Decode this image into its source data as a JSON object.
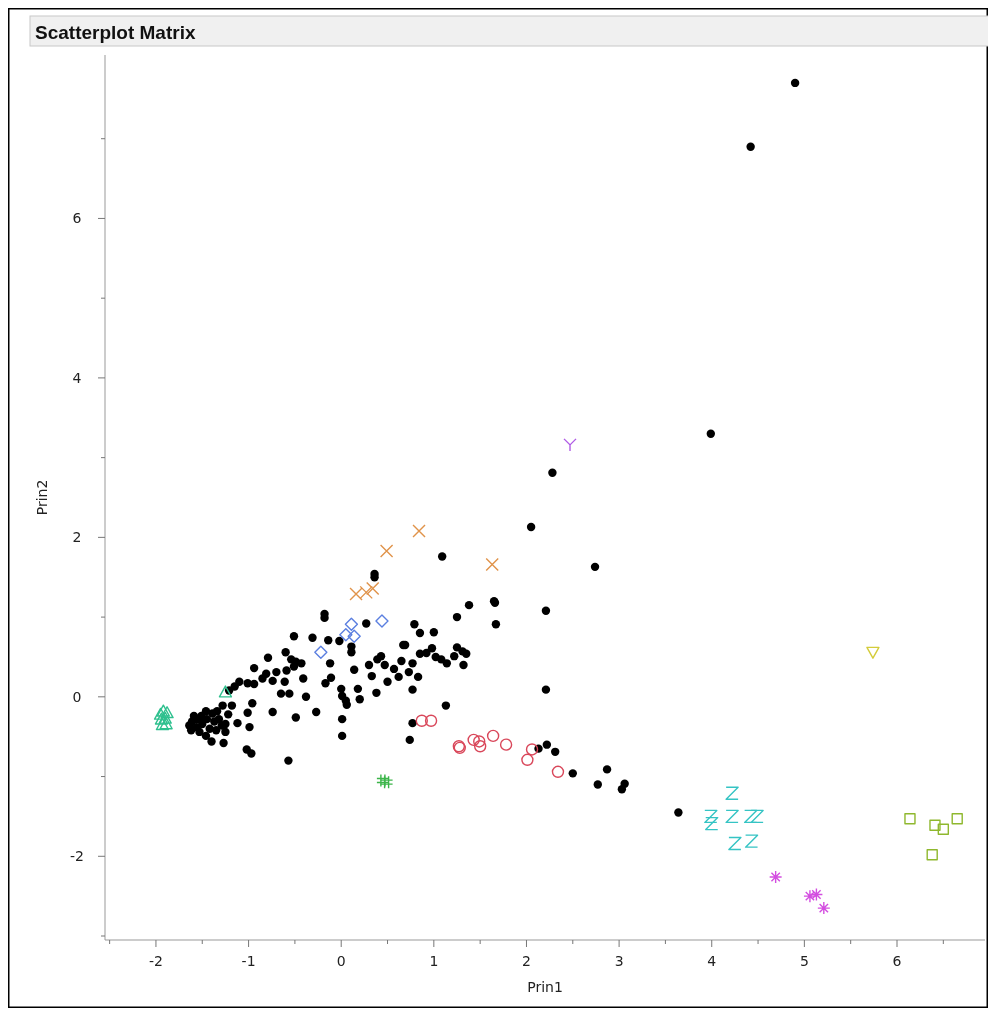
{
  "chart_data": {
    "type": "scatter",
    "title": "Scatterplot Matrix",
    "xlabel": "Prin1",
    "ylabel": "Prin2",
    "xlim": [
      -2.55,
      6.95
    ],
    "ylim": [
      -3.05,
      8.05
    ],
    "xticks": [
      {
        "value": -2.5,
        "label": null
      },
      -2,
      {
        "value": -1.5,
        "label": null
      },
      -1,
      {
        "value": -0.5,
        "label": null
      },
      0,
      {
        "value": 0.5,
        "label": null
      },
      1,
      {
        "value": 1.5,
        "label": null
      },
      2,
      {
        "value": 2.5,
        "label": null
      },
      3,
      {
        "value": 3.5,
        "label": null
      },
      4,
      {
        "value": 4.5,
        "label": null
      },
      5,
      {
        "value": 5.5,
        "label": null
      },
      6,
      {
        "value": 6.5,
        "label": null
      }
    ],
    "yticks": [
      {
        "value": -3,
        "label": null
      },
      -2,
      {
        "value": -1,
        "label": null
      },
      0,
      {
        "value": 1,
        "label": null
      },
      2,
      {
        "value": 3,
        "label": null
      },
      4,
      {
        "value": 5,
        "label": null
      },
      6,
      {
        "value": 7,
        "label": null
      }
    ],
    "series": [
      {
        "color": "#000000",
        "marker": "circle",
        "x": [
          0.36,
          0.36,
          -0.18,
          -0.18,
          -0.51,
          -0.31,
          -0.14,
          -0.02,
          0.11,
          0.11,
          0.27,
          -0.79,
          -0.6,
          -0.54,
          -0.49,
          -0.43,
          -0.94,
          -0.81,
          -0.85,
          -0.7,
          -0.74,
          -0.59,
          -0.61,
          -0.51,
          -1.1,
          -1.01,
          -0.94,
          -1.15,
          -1.21,
          -0.41,
          -0.65,
          -0.56,
          -0.38,
          -0.12,
          -0.17,
          -0.11,
          0,
          0.01,
          0.05,
          0.06,
          0.14,
          0.18,
          0.2,
          0.3,
          0.33,
          0.38,
          0.39,
          0.43,
          0.47,
          0.5,
          0.57,
          0.62,
          0.65,
          0.67,
          0.69,
          0.73,
          0.77,
          0.77,
          0.79,
          0.83,
          0.85,
          0.85,
          0.92,
          0.98,
          1.0,
          1.02,
          1.08,
          1.14,
          1.22,
          1.25,
          1.31,
          1.35,
          1.32,
          1.25,
          1.38,
          1.65,
          1.66,
          1.67,
          1.13,
          0.77,
          0.74,
          -1.18,
          -1.22,
          -1.01,
          -0.96,
          -1.12,
          -0.99,
          -1.25,
          -1.25,
          -1.4,
          -1.27,
          -1.02,
          -0.97,
          -0.74,
          -0.49,
          -0.27,
          0.01,
          0.01,
          -0.57,
          -1.64,
          -1.61,
          -1.56,
          -1.55,
          -1.51,
          -1.5,
          -1.46,
          -1.45,
          -1.42,
          -1.39,
          -1.37,
          -1.34,
          -1.32,
          -1.29,
          -1.28,
          -1.62,
          -1.53,
          -1.46,
          -1.35,
          -1.59,
          2.28,
          2.05,
          1.09,
          2.74,
          2.21,
          2.21,
          2.13,
          2.22,
          2.31,
          2.5,
          2.87,
          2.77,
          3.06,
          3.03,
          3.64,
          4.9,
          4.42,
          3.99
        ],
        "values": [
          1.54,
          1.5,
          1.04,
          0.99,
          0.76,
          0.74,
          0.71,
          0.7,
          0.63,
          0.56,
          0.92,
          0.49,
          0.56,
          0.47,
          0.44,
          0.42,
          0.36,
          0.29,
          0.23,
          0.31,
          0.2,
          0.33,
          0.19,
          0.38,
          0.19,
          0.17,
          0.16,
          0.13,
          0.08,
          0.23,
          0.04,
          0.04,
          0.0,
          0.42,
          0.17,
          0.24,
          0.1,
          0.01,
          -0.05,
          -0.1,
          0.34,
          0.1,
          -0.03,
          0.4,
          0.26,
          0.05,
          0.47,
          0.51,
          0.4,
          0.19,
          0.35,
          0.25,
          0.45,
          0.65,
          0.65,
          0.31,
          0.42,
          0.09,
          0.91,
          0.25,
          0.8,
          0.54,
          0.55,
          0.61,
          0.81,
          0.5,
          0.47,
          0.42,
          0.51,
          0.62,
          0.57,
          0.54,
          0.4,
          1.0,
          1.15,
          1.2,
          1.18,
          0.91,
          -0.11,
          -0.33,
          -0.54,
          -0.11,
          -0.22,
          -0.2,
          -0.08,
          -0.33,
          -0.38,
          -0.34,
          -0.44,
          -0.56,
          -0.58,
          -0.66,
          -0.71,
          -0.19,
          -0.26,
          -0.19,
          -0.28,
          -0.49,
          -0.8,
          -0.36,
          -0.31,
          -0.38,
          -0.28,
          -0.24,
          -0.34,
          -0.18,
          -0.28,
          -0.4,
          -0.21,
          -0.31,
          -0.18,
          -0.28,
          -0.36,
          -0.11,
          -0.42,
          -0.44,
          -0.49,
          -0.42,
          -0.24,
          2.81,
          2.13,
          1.76,
          1.63,
          1.08,
          0.09,
          -0.65,
          -0.6,
          -0.69,
          -0.96,
          -0.91,
          -1.1,
          -1.09,
          -1.16,
          -1.45,
          7.7,
          6.9,
          3.3
        ]
      },
      {
        "color": "#2ec08e",
        "marker": "triangle",
        "x": [
          -1.95,
          -1.92,
          -1.88,
          -1.94,
          -1.9,
          -1.93,
          -1.89,
          -1.25
        ],
        "values": [
          -0.22,
          -0.18,
          -0.2,
          -0.28,
          -0.27,
          -0.35,
          -0.34,
          0.06
        ]
      },
      {
        "color": "#e0934a",
        "marker": "cross",
        "x": [
          0.16,
          0.27,
          0.34,
          0.49,
          0.84,
          1.63
        ],
        "values": [
          1.29,
          1.31,
          1.36,
          1.83,
          2.08,
          1.66
        ]
      },
      {
        "color": "#5b7fe0",
        "marker": "diamond",
        "x": [
          -0.22,
          0.05,
          0.11,
          0.14,
          0.44
        ],
        "values": [
          0.56,
          0.78,
          0.91,
          0.76,
          0.95
        ]
      },
      {
        "color": "#d9475a",
        "marker": "circle-open",
        "x": [
          0.87,
          0.97,
          1.27,
          1.28,
          1.43,
          1.49,
          1.5,
          1.64,
          1.78,
          2.01,
          2.06,
          2.34
        ],
        "values": [
          -0.3,
          -0.3,
          -0.62,
          -0.64,
          -0.54,
          -0.56,
          -0.62,
          -0.49,
          -0.6,
          -0.79,
          -0.66,
          -0.94
        ]
      },
      {
        "color": "#b05ce6",
        "marker": "cross-y",
        "x": [
          2.47
        ],
        "values": [
          3.16
        ]
      },
      {
        "color": "#3cb54a",
        "marker": "cross-hash",
        "x": [
          0.45,
          0.49
        ],
        "values": [
          -1.05,
          -1.07
        ]
      },
      {
        "color": "#35c4c4",
        "marker": "cross-z",
        "x": [
          4.22,
          3.99,
          4.0,
          4.22,
          4.42,
          4.49,
          4.25,
          4.43
        ],
        "values": [
          -1.21,
          -1.5,
          -1.59,
          -1.5,
          -1.5,
          -1.5,
          -1.84,
          -1.81
        ]
      },
      {
        "color": "#d34ee0",
        "marker": "cross-asterisk",
        "x": [
          4.69,
          5.06,
          5.13,
          5.21
        ],
        "values": [
          -2.26,
          -2.5,
          -2.48,
          -2.65
        ]
      },
      {
        "color": "#d4cc3a",
        "marker": "triangle-down",
        "x": [
          5.74
        ],
        "values": [
          0.56
        ]
      },
      {
        "color": "#8fb82e",
        "marker": "square",
        "x": [
          6.14,
          6.41,
          6.5,
          6.65,
          6.38
        ],
        "values": [
          -1.53,
          -1.61,
          -1.66,
          -1.53,
          -1.98
        ]
      }
    ]
  }
}
